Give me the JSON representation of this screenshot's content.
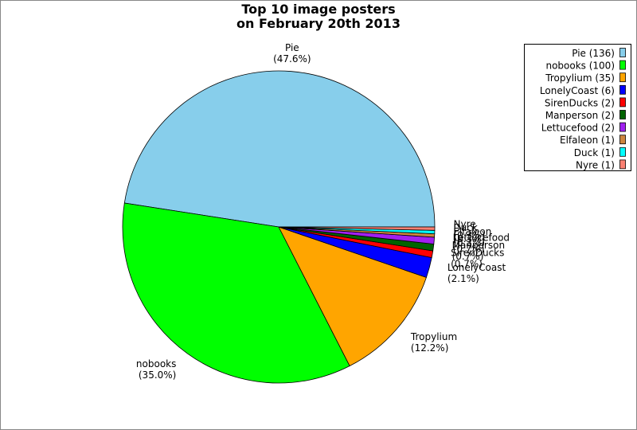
{
  "chart_data": {
    "type": "pie",
    "title": [
      "Top 10 image posters",
      "on February 20th 2013"
    ],
    "categories": [
      "Pie",
      "nobooks",
      "Tropylium",
      "LonelyCoast",
      "SirenDucks",
      "Manperson",
      "Lettucefood",
      "Elfaleon",
      "Duck",
      "Nyre"
    ],
    "values": [
      136,
      100,
      35,
      6,
      2,
      2,
      2,
      1,
      1,
      1
    ],
    "percent_labels": [
      "(47.6%)",
      "(35.0%)",
      "(12.2%)",
      "(2.1%)",
      "(0.7%)",
      "(0.7%)",
      "(0.7%)",
      "(0.3%)",
      "(0.3%)",
      "(0.3%)"
    ],
    "legend_labels": [
      "Pie (136)",
      "nobooks (100)",
      "Tropylium (35)",
      "LonelyCoast (6)",
      "SirenDucks (2)",
      "Manperson (2)",
      "Lettucefood (2)",
      "Elfaleon (1)",
      "Duck (1)",
      "Nyre (1)"
    ],
    "colors": [
      "#87ceeb",
      "#00ff00",
      "#ffa500",
      "#0000ff",
      "#ff0000",
      "#006400",
      "#a020f0",
      "#cd853f",
      "#00ffff",
      "#fa8072"
    ],
    "legend_position": "upper right"
  }
}
